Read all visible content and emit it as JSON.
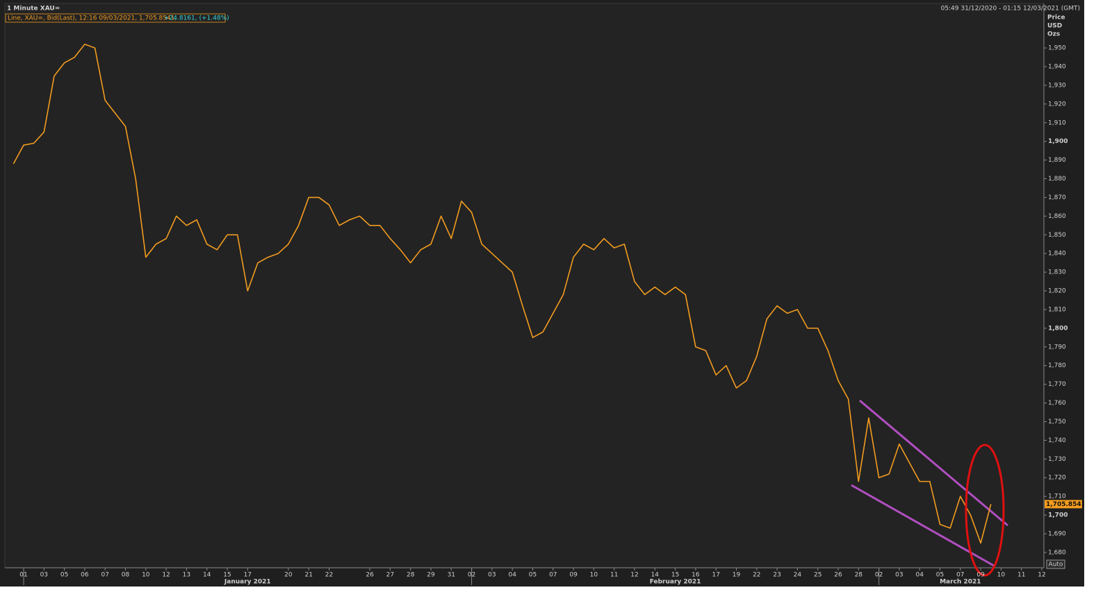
{
  "chart_data": {
    "type": "line",
    "title": "1 Minute XAU=",
    "subtitle": "05:49 31/12/2020 - 01:15 12/03/2021 (GMT)",
    "legend_text": "Line, XAU=, Bid(Last),  12:16 09/03/2021,  1,705.8541,",
    "legend_change": "+24.8161, (+1.48%)",
    "axis_labels": [
      "Price",
      "USD",
      "Ozs"
    ],
    "scale_button": "Auto",
    "months": [
      "January 2021",
      "February 2021",
      "March 2021"
    ],
    "last_price": {
      "value": 1705.8541,
      "label": "1,705.8541"
    },
    "categories": [
      null,
      "01",
      null,
      "03",
      null,
      "05",
      null,
      "06",
      null,
      "07",
      null,
      "08",
      null,
      "10",
      null,
      "12",
      null,
      "13",
      null,
      "14",
      null,
      "15",
      null,
      "17",
      null,
      null,
      null,
      "20",
      null,
      "21",
      null,
      "22",
      null,
      null,
      null,
      "26",
      null,
      "27",
      null,
      "28",
      null,
      "29",
      null,
      "31",
      null,
      "02",
      null,
      "03",
      null,
      "04",
      null,
      "05",
      null,
      "07",
      null,
      "09",
      null,
      "10",
      null,
      "11",
      null,
      "12",
      null,
      "14",
      null,
      "15",
      null,
      "16",
      null,
      "17",
      null,
      "19",
      null,
      "22",
      null,
      "23",
      null,
      "24",
      null,
      "25",
      null,
      "26",
      null,
      "28",
      null,
      "02",
      null,
      "03",
      null,
      "04",
      null,
      "05",
      null,
      "07",
      null,
      "09",
      null,
      "10",
      null,
      "11",
      null,
      "12"
    ],
    "series": [
      {
        "name": "XAU=",
        "color": "#f39c1f",
        "values": [
          1888,
          1898,
          1899,
          1905,
          1935,
          1942,
          1945,
          1952,
          1950,
          1922,
          1915,
          1908,
          1880,
          1838,
          1845,
          1848,
          1860,
          1855,
          1858,
          1845,
          1842,
          1850,
          1850,
          1820,
          1835,
          1838,
          1840,
          1845,
          1855,
          1870,
          1870,
          1866,
          1855,
          1858,
          1860,
          1855,
          1855,
          1848,
          1842,
          1835,
          1842,
          1845,
          1860,
          1848,
          1868,
          1862,
          1845,
          1840,
          1835,
          1830,
          1812,
          1795,
          1798,
          1808,
          1818,
          1838,
          1845,
          1842,
          1848,
          1843,
          1845,
          1825,
          1818,
          1822,
          1818,
          1822,
          1818,
          1790,
          1788,
          1775,
          1780,
          1768,
          1772,
          1785,
          1805,
          1812,
          1808,
          1810,
          1800,
          1800,
          1788,
          1772,
          1762,
          1718,
          1752,
          1720,
          1722,
          1738,
          1728,
          1718,
          1718,
          1695,
          1693,
          1710,
          1700,
          1685,
          1705.8541,
          null,
          null,
          null,
          null,
          null
        ]
      }
    ],
    "ylim": [
      1671.8,
      1973.8
    ],
    "yticks": [
      {
        "value": 1680,
        "label": "1,680"
      },
      {
        "value": 1690,
        "label": "1,690"
      },
      {
        "value": 1700,
        "label": "1,700"
      },
      {
        "value": 1710,
        "label": "1,710"
      },
      {
        "value": 1720,
        "label": "1,720"
      },
      {
        "value": 1730,
        "label": "1,730"
      },
      {
        "value": 1740,
        "label": "1,740"
      },
      {
        "value": 1750,
        "label": "1,750"
      },
      {
        "value": 1760,
        "label": "1,760"
      },
      {
        "value": 1770,
        "label": "1,770"
      },
      {
        "value": 1780,
        "label": "1,780"
      },
      {
        "value": 1790,
        "label": "1,790"
      },
      {
        "value": 1800,
        "label": "1,800"
      },
      {
        "value": 1810,
        "label": "1,810"
      },
      {
        "value": 1820,
        "label": "1,820"
      },
      {
        "value": 1830,
        "label": "1,830"
      },
      {
        "value": 1840,
        "label": "1,840"
      },
      {
        "value": 1850,
        "label": "1,850"
      },
      {
        "value": 1860,
        "label": "1,860"
      },
      {
        "value": 1870,
        "label": "1,870"
      },
      {
        "value": 1880,
        "label": "1,880"
      },
      {
        "value": 1890,
        "label": "1,890"
      },
      {
        "value": 1900,
        "label": "1,900"
      },
      {
        "value": 1910,
        "label": "1,910"
      },
      {
        "value": 1920,
        "label": "1,920"
      },
      {
        "value": 1930,
        "label": "1,930"
      },
      {
        "value": 1940,
        "label": "1,940"
      },
      {
        "value": 1950,
        "label": "1,950"
      }
    ],
    "grid": false
  }
}
